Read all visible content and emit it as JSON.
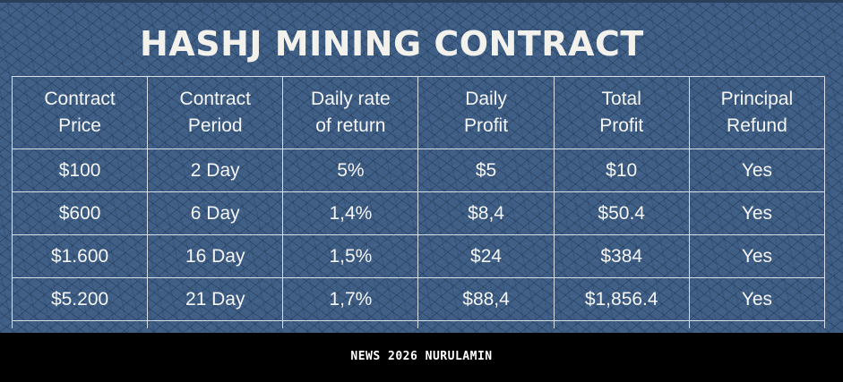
{
  "title": "HASHJ MINING CONTRACT",
  "table": {
    "headers": [
      [
        "Contract",
        "Price"
      ],
      [
        "Contract",
        "Period"
      ],
      [
        "Daily rate",
        "of return"
      ],
      [
        "Daily",
        "Profit"
      ],
      [
        "Total",
        "Profit"
      ],
      [
        "Principal",
        "Refund"
      ]
    ],
    "rows": [
      [
        "$100",
        "2 Day",
        "5%",
        "$5",
        "$10",
        "Yes"
      ],
      [
        "$600",
        "6 Day",
        "1,4%",
        "$8,4",
        "$50.4",
        "Yes"
      ],
      [
        "$1.600",
        "16 Day",
        "1,5%",
        "$24",
        "$384",
        "Yes"
      ],
      [
        "$5.200",
        "21 Day",
        "1,7%",
        "$88,4",
        "$1,856.4",
        "Yes"
      ]
    ]
  },
  "footer": {
    "caption": "NEWS 2026 NURULAMIN"
  },
  "colors": {
    "background": "#3f5f86",
    "text": "#f5f5f3",
    "grid": "#d9dee6",
    "footer": "#000000"
  }
}
